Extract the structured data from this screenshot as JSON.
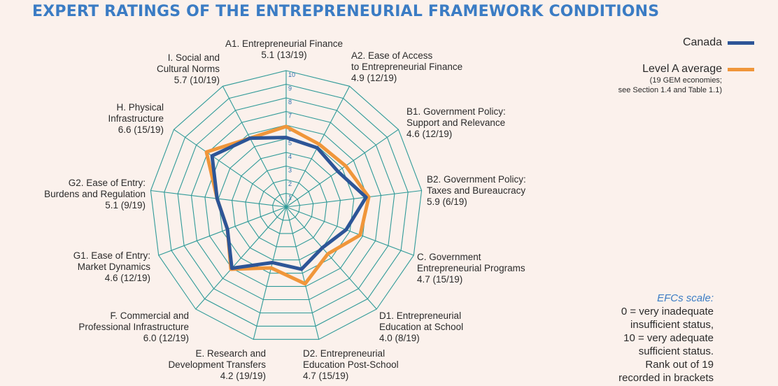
{
  "title": "EXPERT RATINGS OF THE ENTREPRENEURIAL FRAMEWORK CONDITIONS",
  "legend": {
    "canada_label": "Canada",
    "level_a_label": "Level A average",
    "level_a_note_1": "(19 GEM economies;",
    "level_a_note_2": "see Section 1.4 and Table 1.1)"
  },
  "scale": {
    "title": "EFCs scale:",
    "lines": [
      "0 = very inadequate",
      "insufficient status,",
      "10 = very adequate",
      "sufficient status.",
      "Rank out of 19",
      "recorded in brackets"
    ]
  },
  "colors": {
    "canada": "#2d5597",
    "level_a": "#f0963a",
    "grid": "#2f9a98",
    "title": "#3b7cc4"
  },
  "chart_data": {
    "type": "radar",
    "rmin": 0,
    "rmax": 10,
    "ticks": [
      "1",
      "2",
      "3",
      "4",
      "5",
      "6",
      "7",
      "8",
      "9",
      "10"
    ],
    "axes": [
      {
        "lines": [
          "A1. Entrepreneurial Finance",
          "5.1 (13/19)"
        ]
      },
      {
        "lines": [
          "A2. Ease of Access",
          "to Entrepreneurial Finance",
          "4.9 (12/19)"
        ]
      },
      {
        "lines": [
          "B1. Government Policy:",
          "Support and Relevance",
          "4.6 (12/19)"
        ]
      },
      {
        "lines": [
          "B2. Government Policy:",
          "Taxes and Bureaucracy",
          "5.9 (6/19)"
        ]
      },
      {
        "lines": [
          "C. Government",
          "Entrepreneurial Programs",
          "4.7 (15/19)"
        ]
      },
      {
        "lines": [
          "D1. Entrepreneurial",
          "Education at School",
          "4.0 (8/19)"
        ]
      },
      {
        "lines": [
          "D2. Entrepreneurial",
          "Education Post-School",
          "4.7 (15/19)"
        ]
      },
      {
        "lines": [
          "E. Research and",
          "Development Transfers",
          "4.2 (19/19)"
        ]
      },
      {
        "lines": [
          "F. Commercial and",
          "Professional Infrastructure",
          "6.0 (12/19)"
        ]
      },
      {
        "lines": [
          "G1. Ease of Entry:",
          "Market Dynamics",
          "4.6 (12/19)"
        ]
      },
      {
        "lines": [
          "G2. Ease of Entry:",
          "Burdens and Regulation",
          "5.1 (9/19)"
        ]
      },
      {
        "lines": [
          "H. Physical",
          "Infrastructure",
          "6.6 (15/19)"
        ]
      },
      {
        "lines": [
          "I. Social and",
          "Cultural Norms",
          "5.7 (10/19)"
        ]
      }
    ],
    "series": [
      {
        "name": "Canada",
        "values": [
          5.1,
          4.9,
          4.6,
          5.9,
          4.7,
          4.0,
          4.7,
          4.2,
          6.0,
          4.6,
          5.1,
          6.6,
          5.7
        ]
      },
      {
        "name": "Level A average",
        "values": [
          5.9,
          5.2,
          5.3,
          6.1,
          5.8,
          4.6,
          5.8,
          4.6,
          6.1,
          4.6,
          5.1,
          7.1,
          5.7
        ]
      }
    ]
  }
}
